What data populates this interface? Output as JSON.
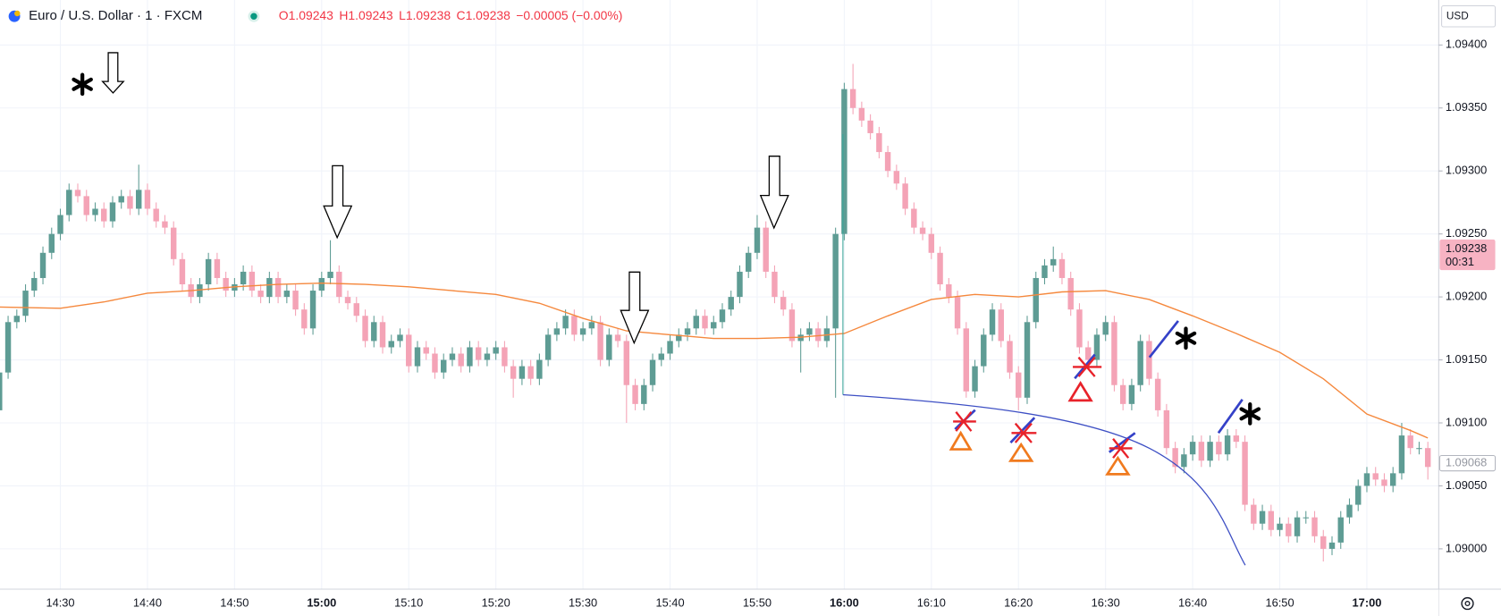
{
  "header": {
    "symbol": "Euro / U.S. Dollar · 1 · FXCM",
    "ohlc": [
      {
        "label": "O",
        "value": "1.09243"
      },
      {
        "label": "H",
        "value": "1.09243"
      },
      {
        "label": "L",
        "value": "1.09238"
      },
      {
        "label": "C",
        "value": "1.09238"
      }
    ],
    "change": "−0.00005 (−0.00%)",
    "currency": "USD"
  },
  "chart_data": {
    "type": "candlestick",
    "up_color": "#5e9c94",
    "down_color": "#f4a3b6",
    "grid": true,
    "xlim": [
      863.07,
      1028.25
    ],
    "ylim": [
      1.08968,
      1.094357
    ],
    "xticks": [
      {
        "value": 870,
        "label": "14:30"
      },
      {
        "value": 880,
        "label": "14:40"
      },
      {
        "value": 890,
        "label": "14:50"
      },
      {
        "value": 900,
        "label": "15:00",
        "major": true
      },
      {
        "value": 910,
        "label": "15:10"
      },
      {
        "value": 920,
        "label": "15:20"
      },
      {
        "value": 930,
        "label": "15:30"
      },
      {
        "value": 940,
        "label": "15:40"
      },
      {
        "value": 950,
        "label": "15:50"
      },
      {
        "value": 960,
        "label": "16:00",
        "major": true
      },
      {
        "value": 970,
        "label": "16:10"
      },
      {
        "value": 980,
        "label": "16:20"
      },
      {
        "value": 990,
        "label": "16:30"
      },
      {
        "value": 1000,
        "label": "16:40"
      },
      {
        "value": 1010,
        "label": "16:50"
      },
      {
        "value": 1020,
        "label": "17:00",
        "major": true
      }
    ],
    "yticks": [
      {
        "value": 1.094,
        "label": "1.09400"
      },
      {
        "value": 1.0935,
        "label": "1.09350"
      },
      {
        "value": 1.093,
        "label": "1.09300"
      },
      {
        "value": 1.0925,
        "label": "1.09250"
      },
      {
        "value": 1.092,
        "label": "1.09200"
      },
      {
        "value": 1.0915,
        "label": "1.09150"
      },
      {
        "value": 1.091,
        "label": "1.09100"
      },
      {
        "value": 1.0905,
        "label": "1.09050"
      },
      {
        "value": 1.09,
        "label": "1.09000"
      }
    ],
    "x": [
      863,
      864,
      865,
      866,
      867,
      868,
      869,
      870,
      871,
      872,
      873,
      874,
      875,
      876,
      877,
      878,
      879,
      880,
      881,
      882,
      883,
      884,
      885,
      886,
      887,
      888,
      889,
      890,
      891,
      892,
      893,
      894,
      895,
      896,
      897,
      898,
      899,
      900,
      901,
      902,
      903,
      904,
      905,
      906,
      907,
      908,
      909,
      910,
      911,
      912,
      913,
      914,
      915,
      916,
      917,
      918,
      919,
      920,
      921,
      922,
      923,
      924,
      925,
      926,
      927,
      928,
      929,
      930,
      931,
      932,
      933,
      934,
      935,
      936,
      937,
      938,
      939,
      940,
      941,
      942,
      943,
      944,
      945,
      946,
      947,
      948,
      949,
      950,
      951,
      952,
      953,
      954,
      955,
      956,
      957,
      958,
      959,
      960,
      961,
      962,
      963,
      964,
      965,
      966,
      967,
      968,
      969,
      970,
      971,
      972,
      973,
      974,
      975,
      976,
      977,
      978,
      979,
      980,
      981,
      982,
      983,
      984,
      985,
      986,
      987,
      988,
      989,
      990,
      991,
      992,
      993,
      994,
      995,
      996,
      997,
      998,
      999,
      1000,
      1001,
      1002,
      1003,
      1004,
      1005,
      1006,
      1007,
      1008,
      1009,
      1010,
      1011,
      1012,
      1013,
      1014,
      1015,
      1016,
      1017,
      1018,
      1019,
      1020,
      1021,
      1022,
      1023,
      1024,
      1025,
      1026,
      1027
    ],
    "candles": [
      [
        1.0911,
        1.09145,
        1.09105,
        1.0914
      ],
      [
        1.0914,
        1.09185,
        1.09135,
        1.0918
      ],
      [
        1.0918,
        1.0919,
        1.09175,
        1.09185
      ],
      [
        1.09185,
        1.0921,
        1.0918,
        1.09205
      ],
      [
        1.09205,
        1.0922,
        1.092,
        1.09215
      ],
      [
        1.09215,
        1.0924,
        1.0921,
        1.09235
      ],
      [
        1.09235,
        1.09255,
        1.0923,
        1.0925
      ],
      [
        1.0925,
        1.0927,
        1.09245,
        1.09265
      ],
      [
        1.09265,
        1.0929,
        1.0926,
        1.09285
      ],
      [
        1.09285,
        1.0929,
        1.09275,
        1.0928
      ],
      [
        1.0928,
        1.09285,
        1.0926,
        1.09265
      ],
      [
        1.09265,
        1.09275,
        1.0926,
        1.0927
      ],
      [
        1.0927,
        1.09275,
        1.09255,
        1.0926
      ],
      [
        1.0926,
        1.0928,
        1.09255,
        1.09275
      ],
      [
        1.09275,
        1.09285,
        1.0927,
        1.0928
      ],
      [
        1.0928,
        1.09285,
        1.09265,
        1.0927
      ],
      [
        1.0927,
        1.09305,
        1.09265,
        1.09285
      ],
      [
        1.09285,
        1.0929,
        1.09265,
        1.0927
      ],
      [
        1.0927,
        1.09275,
        1.09255,
        1.0926
      ],
      [
        1.0926,
        1.09265,
        1.0925,
        1.09255
      ],
      [
        1.09255,
        1.0926,
        1.09225,
        1.0923
      ],
      [
        1.0923,
        1.09235,
        1.09205,
        1.0921
      ],
      [
        1.0921,
        1.09215,
        1.09195,
        1.092
      ],
      [
        1.092,
        1.09215,
        1.09195,
        1.0921
      ],
      [
        1.0921,
        1.09235,
        1.09205,
        1.0923
      ],
      [
        1.0923,
        1.09235,
        1.0921,
        1.09215
      ],
      [
        1.09215,
        1.0922,
        1.092,
        1.09205
      ],
      [
        1.09205,
        1.09215,
        1.092,
        1.0921
      ],
      [
        1.0921,
        1.09225,
        1.09205,
        1.0922
      ],
      [
        1.0922,
        1.09225,
        1.092,
        1.09205
      ],
      [
        1.09205,
        1.0921,
        1.09195,
        1.092
      ],
      [
        1.092,
        1.0922,
        1.09195,
        1.09215
      ],
      [
        1.09215,
        1.0922,
        1.09195,
        1.092
      ],
      [
        1.092,
        1.0921,
        1.09195,
        1.09205
      ],
      [
        1.09205,
        1.0921,
        1.09185,
        1.0919
      ],
      [
        1.0919,
        1.09195,
        1.0917,
        1.09175
      ],
      [
        1.09175,
        1.0921,
        1.0917,
        1.09205
      ],
      [
        1.09205,
        1.0922,
        1.092,
        1.09215
      ],
      [
        1.09215,
        1.09245,
        1.0921,
        1.0922
      ],
      [
        1.0922,
        1.09225,
        1.09195,
        1.092
      ],
      [
        1.092,
        1.09205,
        1.0919,
        1.09195
      ],
      [
        1.09195,
        1.092,
        1.0918,
        1.09185
      ],
      [
        1.09185,
        1.0919,
        1.0916,
        1.09165
      ],
      [
        1.09165,
        1.09185,
        1.0916,
        1.0918
      ],
      [
        1.0918,
        1.09185,
        1.09155,
        1.0916
      ],
      [
        1.0916,
        1.0917,
        1.09155,
        1.09165
      ],
      [
        1.09165,
        1.09175,
        1.0916,
        1.0917
      ],
      [
        1.0917,
        1.09175,
        1.0914,
        1.09145
      ],
      [
        1.09145,
        1.09165,
        1.0914,
        1.0916
      ],
      [
        1.0916,
        1.09165,
        1.0915,
        1.09155
      ],
      [
        1.09155,
        1.0916,
        1.09135,
        1.0914
      ],
      [
        1.0914,
        1.09155,
        1.09135,
        1.0915
      ],
      [
        1.0915,
        1.0916,
        1.09145,
        1.09155
      ],
      [
        1.09155,
        1.0916,
        1.0914,
        1.09145
      ],
      [
        1.09145,
        1.09165,
        1.0914,
        1.0916
      ],
      [
        1.0916,
        1.09165,
        1.09145,
        1.0915
      ],
      [
        1.0915,
        1.0916,
        1.09145,
        1.09155
      ],
      [
        1.09155,
        1.09165,
        1.0915,
        1.0916
      ],
      [
        1.0916,
        1.09165,
        1.0914,
        1.09145
      ],
      [
        1.09145,
        1.0915,
        1.0912,
        1.09135
      ],
      [
        1.09135,
        1.0915,
        1.0913,
        1.09145
      ],
      [
        1.09145,
        1.0915,
        1.0913,
        1.09135
      ],
      [
        1.09135,
        1.09155,
        1.0913,
        1.0915
      ],
      [
        1.0915,
        1.09175,
        1.09145,
        1.0917
      ],
      [
        1.0917,
        1.0918,
        1.09165,
        1.09175
      ],
      [
        1.09175,
        1.0919,
        1.0917,
        1.09185
      ],
      [
        1.09185,
        1.0919,
        1.09165,
        1.0917
      ],
      [
        1.0917,
        1.0918,
        1.09165,
        1.09175
      ],
      [
        1.09175,
        1.09185,
        1.0917,
        1.0918
      ],
      [
        1.0918,
        1.09185,
        1.09145,
        1.0915
      ],
      [
        1.0915,
        1.09175,
        1.09145,
        1.0917
      ],
      [
        1.0917,
        1.09175,
        1.0916,
        1.09165
      ],
      [
        1.09165,
        1.0917,
        1.091,
        1.0913
      ],
      [
        1.0913,
        1.09135,
        1.0911,
        1.09115
      ],
      [
        1.09115,
        1.09135,
        1.0911,
        1.0913
      ],
      [
        1.0913,
        1.09155,
        1.09125,
        1.0915
      ],
      [
        1.0915,
        1.0916,
        1.09145,
        1.09155
      ],
      [
        1.09155,
        1.0917,
        1.0915,
        1.09165
      ],
      [
        1.09165,
        1.09175,
        1.0916,
        1.0917
      ],
      [
        1.0917,
        1.0918,
        1.09165,
        1.09175
      ],
      [
        1.09175,
        1.0919,
        1.0917,
        1.09185
      ],
      [
        1.09185,
        1.0919,
        1.0917,
        1.09175
      ],
      [
        1.09175,
        1.09185,
        1.0917,
        1.0918
      ],
      [
        1.0918,
        1.09195,
        1.09175,
        1.0919
      ],
      [
        1.0919,
        1.09205,
        1.09185,
        1.092
      ],
      [
        1.092,
        1.09225,
        1.09195,
        1.0922
      ],
      [
        1.0922,
        1.0924,
        1.09215,
        1.09235
      ],
      [
        1.09235,
        1.09265,
        1.0923,
        1.09255
      ],
      [
        1.09255,
        1.0926,
        1.09215,
        1.0922
      ],
      [
        1.0922,
        1.09225,
        1.09195,
        1.092
      ],
      [
        1.092,
        1.09205,
        1.09185,
        1.0919
      ],
      [
        1.0919,
        1.09195,
        1.0916,
        1.09165
      ],
      [
        1.09165,
        1.09175,
        1.0914,
        1.0917
      ],
      [
        1.0917,
        1.0918,
        1.09165,
        1.09175
      ],
      [
        1.09175,
        1.0918,
        1.0916,
        1.09165
      ],
      [
        1.09165,
        1.09185,
        1.0916,
        1.09175
      ],
      [
        1.09175,
        1.09255,
        1.0912,
        1.0925
      ],
      [
        1.0925,
        1.0937,
        1.09245,
        1.09365
      ],
      [
        1.09365,
        1.09385,
        1.09345,
        1.0935
      ],
      [
        1.0935,
        1.09355,
        1.09335,
        1.0934
      ],
      [
        1.0934,
        1.09345,
        1.09325,
        1.0933
      ],
      [
        1.0933,
        1.09335,
        1.0931,
        1.09315
      ],
      [
        1.09315,
        1.0932,
        1.09295,
        1.093
      ],
      [
        1.093,
        1.09305,
        1.09285,
        1.0929
      ],
      [
        1.0929,
        1.09295,
        1.09265,
        1.0927
      ],
      [
        1.0927,
        1.09275,
        1.0925,
        1.09255
      ],
      [
        1.09255,
        1.0926,
        1.09245,
        1.0925
      ],
      [
        1.0925,
        1.09255,
        1.0923,
        1.09235
      ],
      [
        1.09235,
        1.0924,
        1.09205,
        1.0921
      ],
      [
        1.0921,
        1.09215,
        1.09195,
        1.092
      ],
      [
        1.092,
        1.09205,
        1.0917,
        1.09175
      ],
      [
        1.09175,
        1.0918,
        1.0912,
        1.09125
      ],
      [
        1.09125,
        1.0915,
        1.0912,
        1.09145
      ],
      [
        1.09145,
        1.09175,
        1.0914,
        1.0917
      ],
      [
        1.0917,
        1.09195,
        1.09165,
        1.0919
      ],
      [
        1.0919,
        1.09195,
        1.0916,
        1.09165
      ],
      [
        1.09165,
        1.0917,
        1.09135,
        1.0914
      ],
      [
        1.0914,
        1.09145,
        1.0911,
        1.0912
      ],
      [
        1.0912,
        1.09185,
        1.09115,
        1.0918
      ],
      [
        1.0918,
        1.0922,
        1.09175,
        1.09215
      ],
      [
        1.09215,
        1.0923,
        1.0921,
        1.09225
      ],
      [
        1.09225,
        1.0924,
        1.0922,
        1.0923
      ],
      [
        1.0923,
        1.09235,
        1.0921,
        1.09215
      ],
      [
        1.09215,
        1.0922,
        1.09185,
        1.0919
      ],
      [
        1.0919,
        1.09195,
        1.09155,
        1.0916
      ],
      [
        1.0916,
        1.09165,
        1.09145,
        1.0915
      ],
      [
        1.0915,
        1.09175,
        1.09145,
        1.0917
      ],
      [
        1.0917,
        1.09185,
        1.09165,
        1.0918
      ],
      [
        1.0918,
        1.09185,
        1.09125,
        1.0913
      ],
      [
        1.0913,
        1.09135,
        1.0911,
        1.09115
      ],
      [
        1.09115,
        1.09135,
        1.0911,
        1.0913
      ],
      [
        1.0913,
        1.0917,
        1.09125,
        1.09165
      ],
      [
        1.09165,
        1.0917,
        1.0913,
        1.09135
      ],
      [
        1.09135,
        1.0914,
        1.09105,
        1.0911
      ],
      [
        1.0911,
        1.09115,
        1.09075,
        1.0908
      ],
      [
        1.0908,
        1.09085,
        1.0906,
        1.09065
      ],
      [
        1.09065,
        1.0908,
        1.0906,
        1.09075
      ],
      [
        1.09075,
        1.0909,
        1.0907,
        1.09085
      ],
      [
        1.09085,
        1.0909,
        1.09065,
        1.0907
      ],
      [
        1.0907,
        1.0909,
        1.09065,
        1.09085
      ],
      [
        1.09085,
        1.0909,
        1.0907,
        1.09075
      ],
      [
        1.09075,
        1.09095,
        1.0907,
        1.0909
      ],
      [
        1.0909,
        1.09095,
        1.0908,
        1.09085
      ],
      [
        1.09085,
        1.0909,
        1.0903,
        1.09035
      ],
      [
        1.09035,
        1.0904,
        1.09015,
        1.0902
      ],
      [
        1.0902,
        1.09035,
        1.09015,
        1.0903
      ],
      [
        1.0903,
        1.09035,
        1.0901,
        1.09015
      ],
      [
        1.09015,
        1.09025,
        1.0901,
        1.0902
      ],
      [
        1.0902,
        1.09025,
        1.09005,
        1.0901
      ],
      [
        1.0901,
        1.0903,
        1.09005,
        1.09025
      ],
      [
        1.09025,
        1.0903,
        1.0902,
        1.09025
      ],
      [
        1.09025,
        1.0903,
        1.09005,
        1.0901
      ],
      [
        1.0901,
        1.09015,
        1.0899,
        1.09
      ],
      [
        1.09,
        1.0901,
        1.08995,
        1.09005
      ],
      [
        1.09005,
        1.0903,
        1.09,
        1.09025
      ],
      [
        1.09025,
        1.0904,
        1.0902,
        1.09035
      ],
      [
        1.09035,
        1.09055,
        1.0903,
        1.0905
      ],
      [
        1.0905,
        1.09065,
        1.09045,
        1.0906
      ],
      [
        1.0906,
        1.09065,
        1.0905,
        1.09055
      ],
      [
        1.09055,
        1.0906,
        1.09045,
        1.0905
      ],
      [
        1.0905,
        1.09065,
        1.09045,
        1.0906
      ],
      [
        1.0906,
        1.091,
        1.09055,
        1.0909
      ],
      [
        1.0909,
        1.09095,
        1.09075,
        1.0908
      ],
      [
        1.0908,
        1.09085,
        1.09075,
        1.0908
      ],
      [
        1.0908,
        1.09085,
        1.09055,
        1.09065
      ]
    ],
    "overlays": [
      {
        "color": "#f5883d",
        "x": [
          863,
          870,
          875,
          880,
          885,
          890,
          895,
          900,
          905,
          910,
          915,
          920,
          925,
          930,
          935,
          940,
          945,
          950,
          955,
          960,
          965,
          970,
          975,
          980,
          985,
          990,
          995,
          1000,
          1005,
          1010,
          1015,
          1020,
          1025,
          1027
        ],
        "values": [
          1.09192,
          1.09191,
          1.09196,
          1.09203,
          1.09205,
          1.09208,
          1.0921,
          1.09211,
          1.0921,
          1.09208,
          1.09205,
          1.09202,
          1.09195,
          1.09183,
          1.09173,
          1.0917,
          1.09167,
          1.09167,
          1.09168,
          1.09171,
          1.09185,
          1.09198,
          1.09202,
          1.092,
          1.09204,
          1.09205,
          1.09198,
          1.09185,
          1.09171,
          1.09156,
          1.09135,
          1.09107,
          1.09094,
          1.09088
        ]
      }
    ],
    "price_markers": [
      {
        "value": 1.09238,
        "time": "00:31",
        "color": "#f7b3c3"
      },
      {
        "value": 1.09068,
        "color": "#ffffff"
      }
    ]
  }
}
